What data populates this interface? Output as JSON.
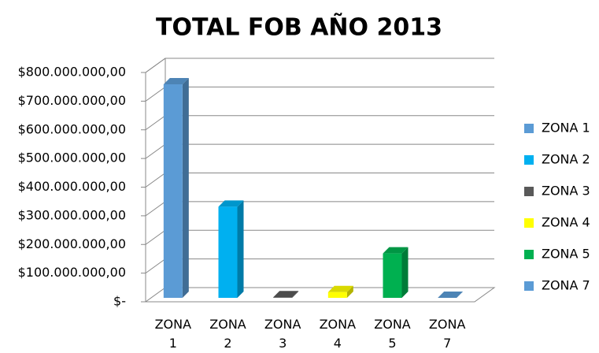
{
  "chart_data": {
    "type": "bar3d",
    "title": "TOTAL FOB AÑO 2013",
    "categories": [
      "ZONA 1",
      "ZONA 2",
      "ZONA 3",
      "ZONA 4",
      "ZONA 5",
      "ZONA 7"
    ],
    "values": [
      745000000,
      318000000,
      2000000,
      20000000,
      155000000,
      0
    ],
    "colors": [
      "#5b9bd5",
      "#00b0f0",
      "#595959",
      "#ffff00",
      "#00b050",
      "#5b9bd5"
    ],
    "ylim": [
      0,
      800000000
    ],
    "yticks": [
      {
        "value": 0,
        "label": "$-"
      },
      {
        "value": 100000000,
        "label": "$100.000.000,00"
      },
      {
        "value": 200000000,
        "label": "$200.000.000,00"
      },
      {
        "value": 300000000,
        "label": "$300.000.000,00"
      },
      {
        "value": 400000000,
        "label": "$400.000.000,00"
      },
      {
        "value": 500000000,
        "label": "$500.000.000,00"
      },
      {
        "value": 600000000,
        "label": "$600.000.000,00"
      },
      {
        "value": 700000000,
        "label": "$700.000.000,00"
      },
      {
        "value": 800000000,
        "label": "$800.000.000,00"
      }
    ],
    "grid": true,
    "legend": "right"
  }
}
